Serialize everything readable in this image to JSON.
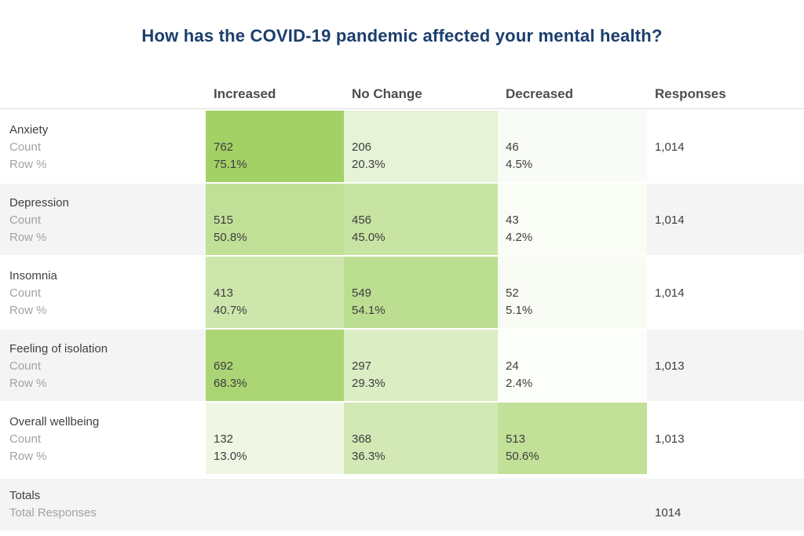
{
  "title": "How has the COVID-19 pandemic affected your mental health?",
  "colors": {
    "title_text": "#1b3e6d",
    "heatmap_base_green": "#84c233",
    "heatmap_strongest_cell": "#a2d166",
    "row_stripe": "#f4f4f4",
    "header_divider": "#dcdcdc",
    "header_text": "#4d4d4d",
    "label_text_dark": "#3f3f3f",
    "label_text_gray": "#a2a2a2"
  },
  "chart_data": {
    "type": "table",
    "subtype": "heatmap-crosstab",
    "title": "How has the COVID-19 pandemic affected your mental health?",
    "columns": [
      "Increased",
      "No Change",
      "Decreased"
    ],
    "responses_column": "Responses",
    "row_metric_labels": [
      "Count",
      "Row %"
    ],
    "rows": [
      {
        "label": "Anxiety",
        "counts": [
          762,
          206,
          46
        ],
        "row_pcts": [
          75.1,
          20.3,
          4.5
        ],
        "responses": "1,014"
      },
      {
        "label": "Depression",
        "counts": [
          515,
          456,
          43
        ],
        "row_pcts": [
          50.8,
          45.0,
          4.2
        ],
        "responses": "1,014"
      },
      {
        "label": "Insomnia",
        "counts": [
          413,
          549,
          52
        ],
        "row_pcts": [
          40.7,
          54.1,
          5.1
        ],
        "responses": "1,014"
      },
      {
        "label": "Feeling of isolation",
        "counts": [
          692,
          297,
          24
        ],
        "row_pcts": [
          68.3,
          29.3,
          2.4
        ],
        "responses": "1,013"
      },
      {
        "label": "Overall wellbeing",
        "counts": [
          132,
          368,
          513
        ],
        "row_pcts": [
          13.0,
          36.3,
          50.6
        ],
        "responses": "1,013"
      }
    ],
    "totals": {
      "label": "Totals",
      "sublabel": "Total Responses",
      "total_responses": "1014"
    },
    "heatmap": {
      "base_color": "#84c233",
      "zero_color": "#ffffff",
      "note": "cell background = linear mix of zero_color toward base_color by row percent / 100"
    },
    "layout": {
      "grid": "off",
      "legend": "none",
      "striped_rows": true
    }
  }
}
